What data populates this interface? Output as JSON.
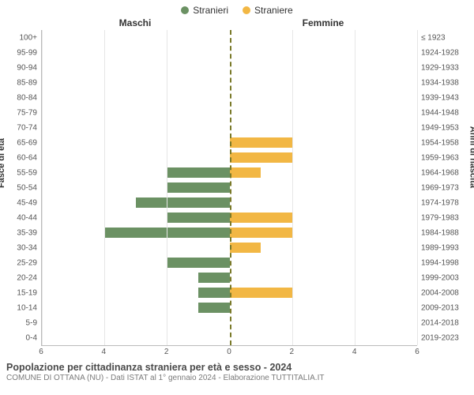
{
  "legend": {
    "male": {
      "label": "Stranieri",
      "color": "#6b9163"
    },
    "female": {
      "label": "Straniere",
      "color": "#f2b744"
    }
  },
  "headers": {
    "male": "Maschi",
    "female": "Femmine"
  },
  "axis_titles": {
    "left": "Fasce di età",
    "right": "Anni di nascita"
  },
  "chart": {
    "type": "population-pyramid",
    "xlim": 6,
    "xtick_step": 2,
    "background_color": "#ffffff",
    "grid_color": "#e6e6e6",
    "center_line_color": "#7a7a2a",
    "bar_color_male": "#6b9163",
    "bar_color_female": "#f2b744",
    "label_fontsize": 10,
    "title_fontsize": 12.5,
    "age_groups": [
      {
        "age": "100+",
        "birth": "≤ 1923",
        "m": 0,
        "f": 0
      },
      {
        "age": "95-99",
        "birth": "1924-1928",
        "m": 0,
        "f": 0
      },
      {
        "age": "90-94",
        "birth": "1929-1933",
        "m": 0,
        "f": 0
      },
      {
        "age": "85-89",
        "birth": "1934-1938",
        "m": 0,
        "f": 0
      },
      {
        "age": "80-84",
        "birth": "1939-1943",
        "m": 0,
        "f": 0
      },
      {
        "age": "75-79",
        "birth": "1944-1948",
        "m": 0,
        "f": 0
      },
      {
        "age": "70-74",
        "birth": "1949-1953",
        "m": 0,
        "f": 0
      },
      {
        "age": "65-69",
        "birth": "1954-1958",
        "m": 0,
        "f": 2
      },
      {
        "age": "60-64",
        "birth": "1959-1963",
        "m": 0,
        "f": 2
      },
      {
        "age": "55-59",
        "birth": "1964-1968",
        "m": 2,
        "f": 1
      },
      {
        "age": "50-54",
        "birth": "1969-1973",
        "m": 2,
        "f": 0
      },
      {
        "age": "45-49",
        "birth": "1974-1978",
        "m": 3,
        "f": 0
      },
      {
        "age": "40-44",
        "birth": "1979-1983",
        "m": 2,
        "f": 2
      },
      {
        "age": "35-39",
        "birth": "1984-1988",
        "m": 4,
        "f": 2
      },
      {
        "age": "30-34",
        "birth": "1989-1993",
        "m": 0,
        "f": 1
      },
      {
        "age": "25-29",
        "birth": "1994-1998",
        "m": 2,
        "f": 0
      },
      {
        "age": "20-24",
        "birth": "1999-2003",
        "m": 1,
        "f": 0
      },
      {
        "age": "15-19",
        "birth": "2004-2008",
        "m": 1,
        "f": 2
      },
      {
        "age": "10-14",
        "birth": "2009-2013",
        "m": 1,
        "f": 0
      },
      {
        "age": "5-9",
        "birth": "2014-2018",
        "m": 0,
        "f": 0
      },
      {
        "age": "0-4",
        "birth": "2019-2023",
        "m": 0,
        "f": 0
      }
    ],
    "xticks": [
      6,
      4,
      2,
      0,
      2,
      4,
      6
    ]
  },
  "footer": {
    "title": "Popolazione per cittadinanza straniera per età e sesso - 2024",
    "subtitle": "COMUNE DI OTTANA (NU) - Dati ISTAT al 1° gennaio 2024 - Elaborazione TUTTITALIA.IT"
  }
}
